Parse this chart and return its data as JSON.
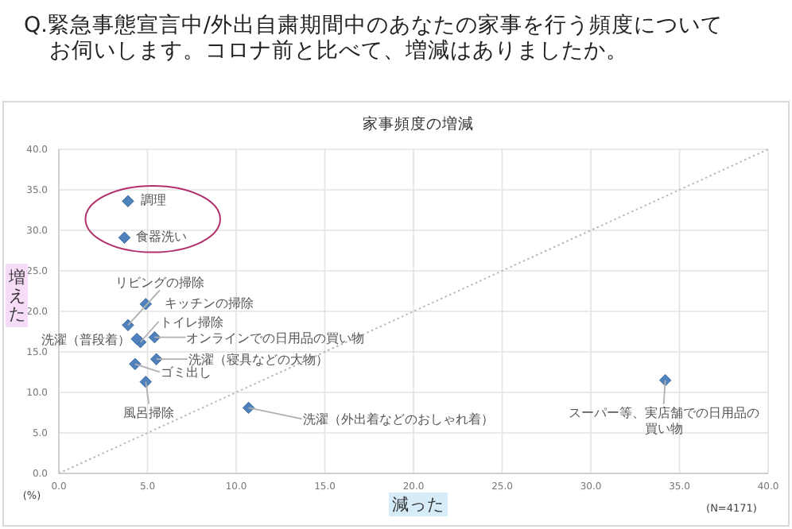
{
  "chart_data": {
    "type": "scatter",
    "title": "Q.緊急事態宣言中/外出自粛期間中のあなたの家事を行う頻度についてお伺いします。コロナ前と比べて、増減はありましたか。",
    "subtitle": "家事頻度の増減",
    "xlabel": "減った",
    "ylabel": "増えた",
    "series": [
      {
        "color": "#4f81bd",
        "x": [
          3.9,
          3.7,
          3.9,
          4.9,
          4.6,
          4.4,
          5.4,
          5.5,
          4.3,
          4.9,
          10.7,
          34.2
        ],
        "values": [
          33.6,
          29.1,
          18.3,
          20.9,
          16.2,
          16.6,
          16.8,
          14.1,
          13.5,
          11.3,
          8.1,
          11.5
        ]
      },
      {
        "type": "line",
        "color": "#b8b8b8",
        "line_style": "dotted",
        "marker": "none",
        "x": [
          0,
          40
        ],
        "values": [
          0,
          40
        ]
      }
    ],
    "annotations": [
      {
        "text": "調理",
        "x": 3.9,
        "y": 33.6
      },
      {
        "text": "食器洗い",
        "x": 3.7,
        "y": 29.1
      },
      {
        "text": "リビングの掃除",
        "x": 3.9,
        "y": 18.3
      },
      {
        "text": "キッチンの掃除",
        "x": 4.9,
        "y": 20.9
      },
      {
        "text": "トイレ掃除",
        "x": 4.6,
        "y": 16.2
      },
      {
        "text": "洗濯（普段着）",
        "x": 4.4,
        "y": 16.6
      },
      {
        "text": "オンラインでの日用品の買い物",
        "x": 5.4,
        "y": 16.8
      },
      {
        "text": "洗濯（寝具などの大物）",
        "x": 5.5,
        "y": 14.1
      },
      {
        "text": "ゴミ出し",
        "x": 4.3,
        "y": 13.5
      },
      {
        "text": "風呂掃除",
        "x": 4.9,
        "y": 11.3
      },
      {
        "text": "洗濯（外出着などのおしゃれ着）",
        "x": 10.7,
        "y": 8.1
      },
      {
        "text": "スーパー等、実店舗での日用品の買い物",
        "x": 34.2,
        "y": 11.5
      },
      "(%)",
      "(N=4171)"
    ],
    "xlim": [
      0,
      40
    ],
    "ylim": [
      0,
      40
    ],
    "xticks": [
      {
        "value": 0,
        "label": "0.0"
      },
      {
        "value": 5,
        "label": "5.0"
      },
      {
        "value": 10,
        "label": "10.0"
      },
      {
        "value": 15,
        "label": "15.0"
      },
      {
        "value": 20,
        "label": "20.0"
      },
      {
        "value": 25,
        "label": "25.0"
      },
      {
        "value": 30,
        "label": "30.0"
      },
      {
        "value": 35,
        "label": "35.0"
      },
      {
        "value": 40,
        "label": "40.0"
      }
    ],
    "yticks": [
      {
        "value": 0,
        "label": "0.0"
      },
      {
        "value": 5,
        "label": "5.0"
      },
      {
        "value": 10,
        "label": "10.0"
      },
      {
        "value": 15,
        "label": "15.0"
      },
      {
        "value": 20,
        "label": "20.0"
      },
      {
        "value": 25,
        "label": "25.0"
      },
      {
        "value": 30,
        "label": "30.0"
      },
      {
        "value": 35,
        "label": "35.0"
      },
      {
        "value": 40,
        "label": "40.0"
      }
    ],
    "grid": true,
    "marker": "diamond"
  }
}
